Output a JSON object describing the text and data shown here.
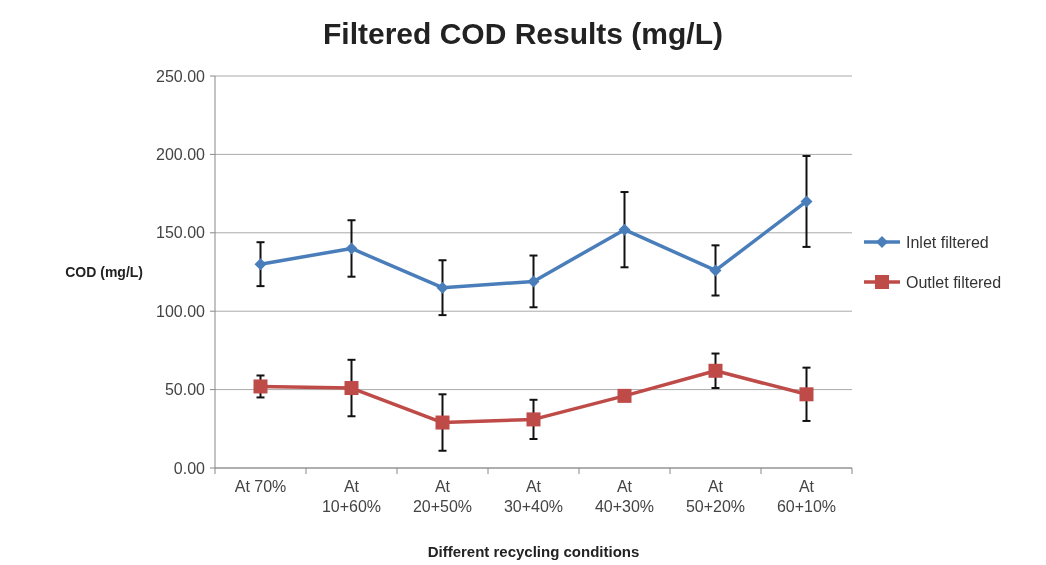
{
  "chart_data": {
    "type": "line",
    "title": "Filtered COD Results (mg/L)",
    "xlabel": "Different recycling conditions",
    "ylabel": "COD (mg/L)",
    "categories": [
      "At 70%",
      "At\n10+60%",
      "At\n20+50%",
      "At\n30+40%",
      "At\n40+30%",
      "At\n50+20%",
      "At\n60+10%"
    ],
    "series": [
      {
        "name": "Inlet filtered",
        "color": "#4a7ebb",
        "marker": "diamond",
        "values": [
          130,
          140,
          115,
          119,
          152,
          126,
          170
        ],
        "errors": [
          14,
          18,
          17.5,
          16.5,
          24,
          16,
          29
        ]
      },
      {
        "name": "Outlet filtered",
        "color": "#be4b48",
        "marker": "square",
        "values": [
          52,
          51,
          29,
          31,
          46,
          62,
          47
        ],
        "errors": [
          7,
          18,
          18,
          12.5,
          null,
          11,
          17
        ]
      }
    ],
    "ylim": [
      0,
      250
    ],
    "yticks": [
      {
        "value": 0,
        "label": "0.00"
      },
      {
        "value": 50,
        "label": "50.00"
      },
      {
        "value": 100,
        "label": "100.00"
      },
      {
        "value": 150,
        "label": "150.00"
      },
      {
        "value": 200,
        "label": "200.00"
      },
      {
        "value": 250,
        "label": "250.00"
      }
    ],
    "grid": "y",
    "legend": "right"
  }
}
